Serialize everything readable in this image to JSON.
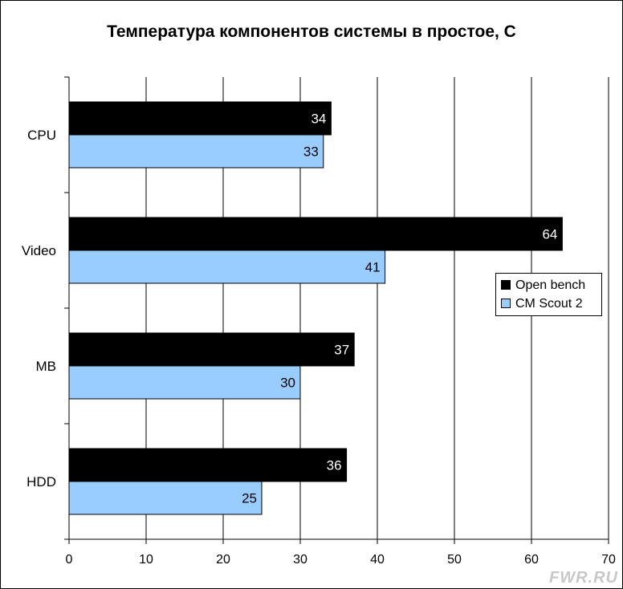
{
  "chart_data": {
    "type": "bar",
    "orientation": "horizontal",
    "title": "Температура компонентов системы в простое, С",
    "categories": [
      "CPU",
      "Video",
      "MB",
      "HDD"
    ],
    "series": [
      {
        "name": "Open bench",
        "color": "#000000",
        "label_color": "#ffffff",
        "values": [
          34,
          64,
          37,
          36
        ]
      },
      {
        "name": "CM Scout 2",
        "color": "#99ccff",
        "label_color": "#000000",
        "values": [
          33,
          41,
          30,
          25
        ]
      }
    ],
    "xlim": [
      0,
      70
    ],
    "xticks": [
      0,
      10,
      20,
      30,
      40,
      50,
      60,
      70
    ],
    "grid": true,
    "legend_position": "right"
  },
  "watermark": "FWR.RU"
}
